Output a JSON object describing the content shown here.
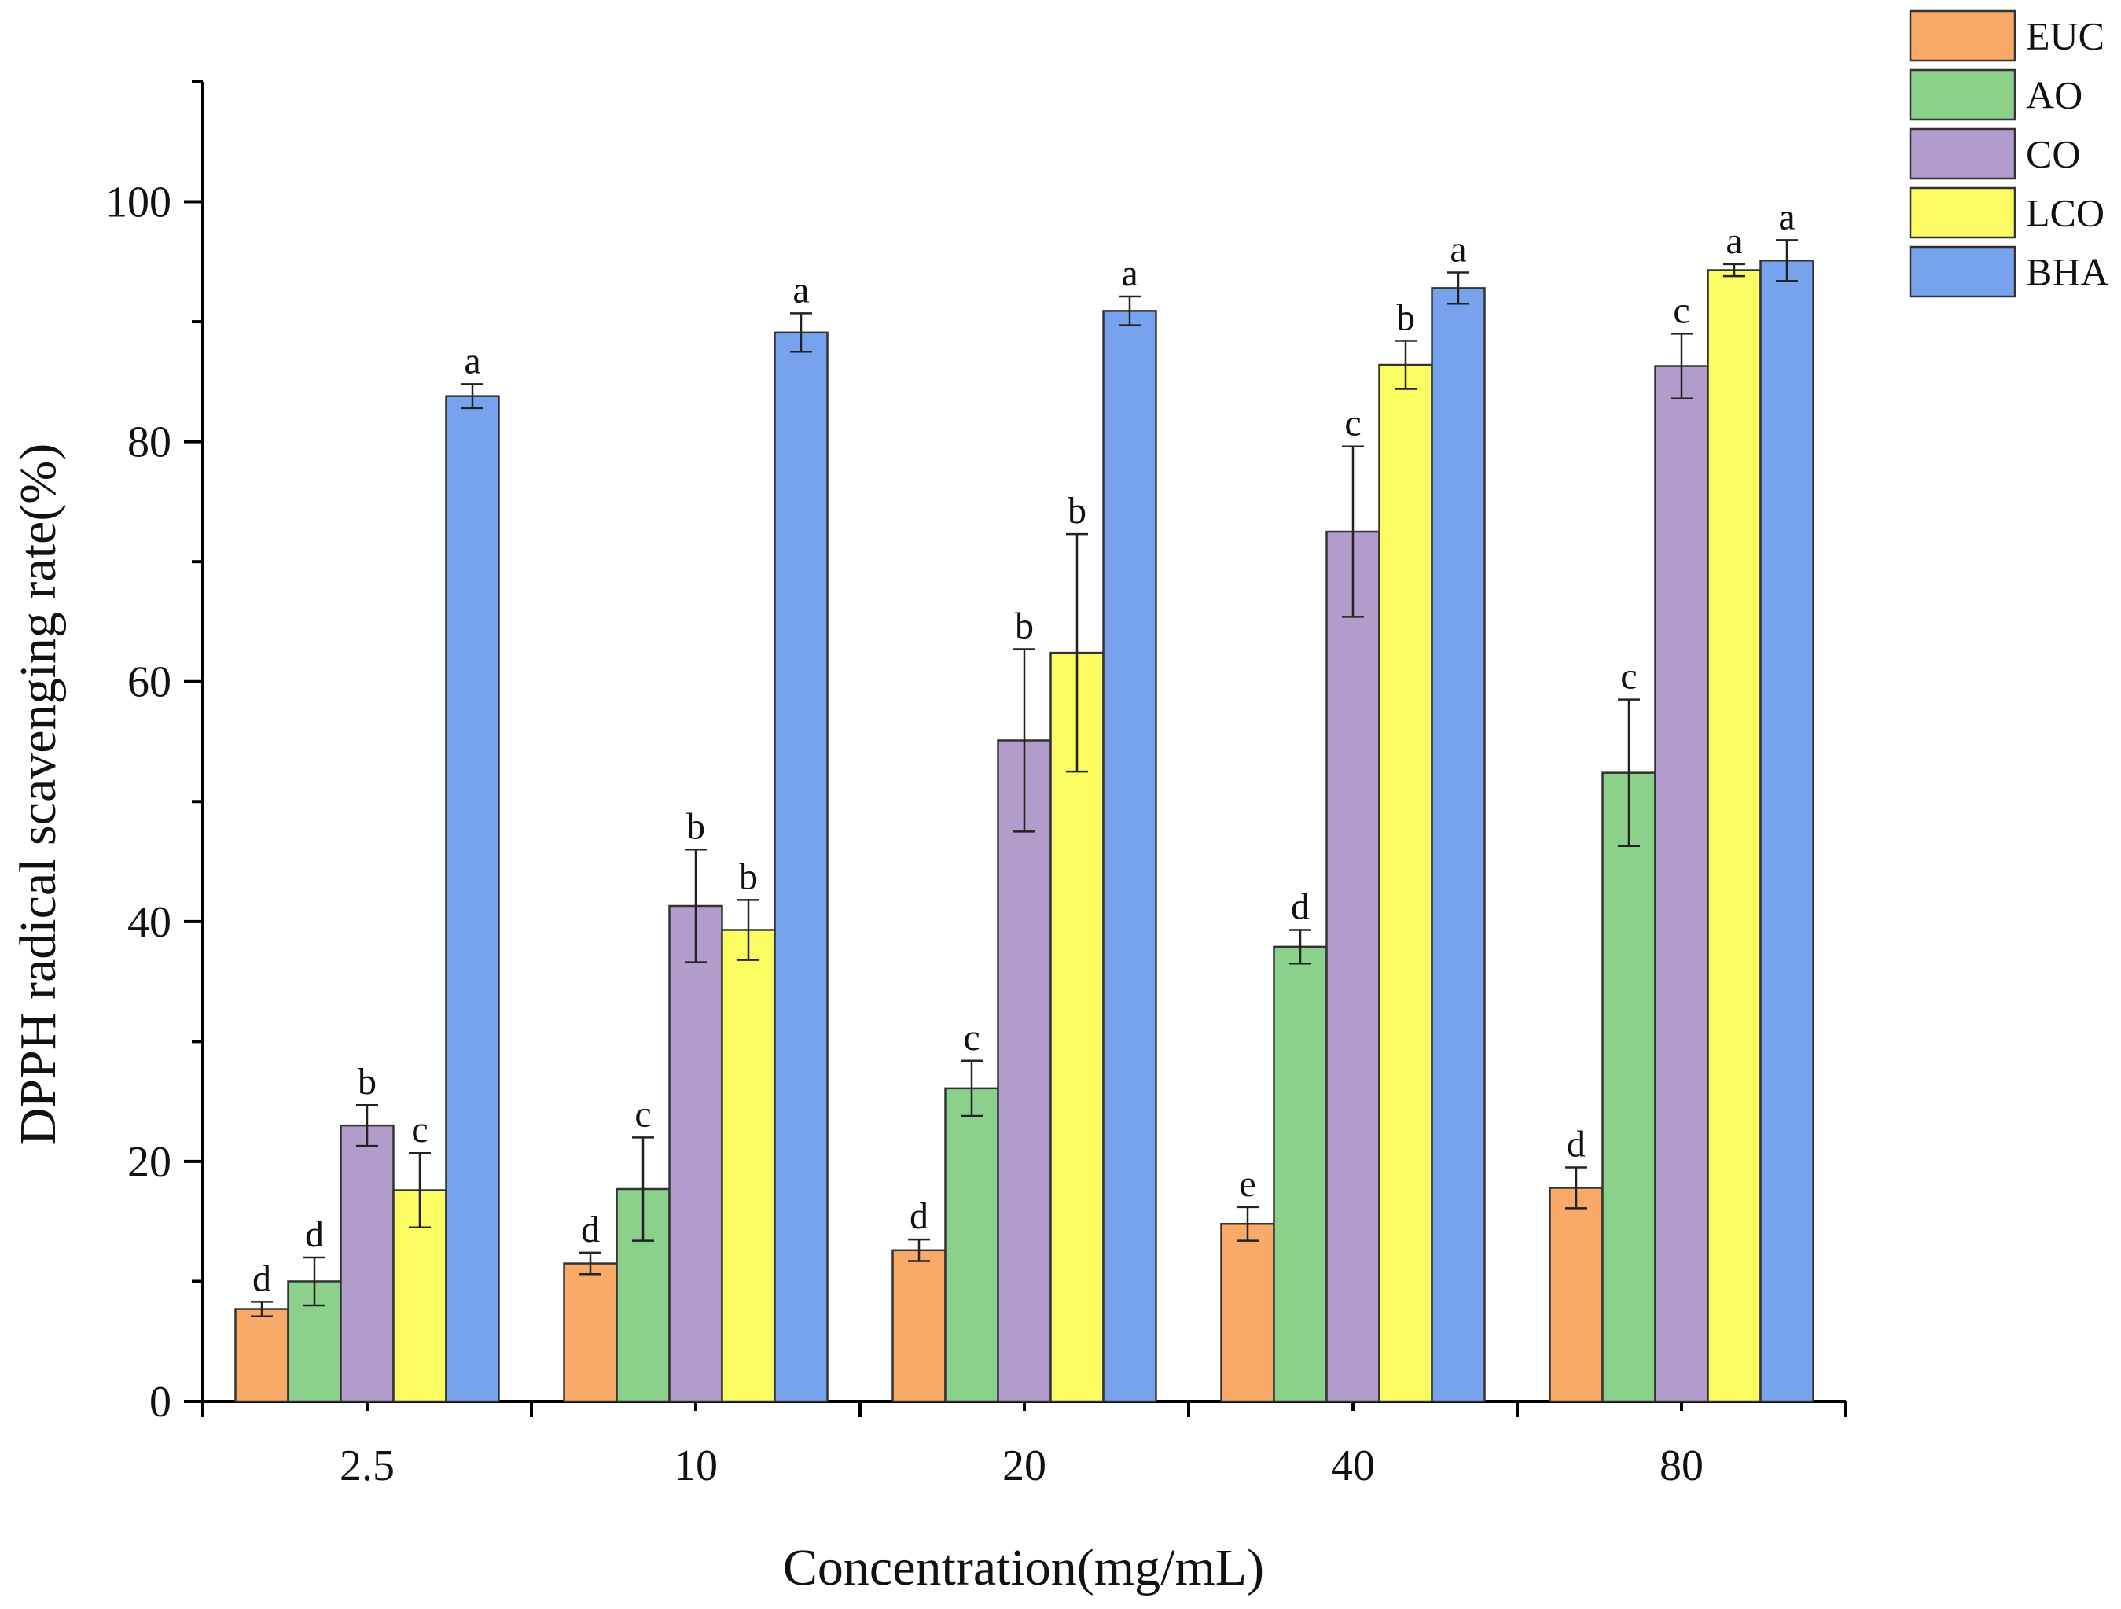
{
  "chart_data": {
    "type": "bar",
    "xlabel": "Concentration(mg/mL)",
    "ylabel": "DPPH radical scavenging rate(%)",
    "ylim": [
      0,
      110
    ],
    "yticks": [
      0,
      20,
      40,
      60,
      80,
      100
    ],
    "categories": [
      "2.5",
      "10",
      "20",
      "40",
      "80"
    ],
    "legend_position": "top-right",
    "series": [
      {
        "name": "EUC",
        "color": "#F9A968",
        "values": [
          7.7,
          11.5,
          12.6,
          14.8,
          17.8
        ],
        "errors": [
          0.6,
          0.9,
          0.9,
          1.4,
          1.7
        ],
        "letters": [
          "d",
          "d",
          "d",
          "e",
          "d"
        ]
      },
      {
        "name": "AO",
        "color": "#8BD08B",
        "values": [
          10.0,
          17.7,
          26.1,
          37.9,
          52.4
        ],
        "errors": [
          2.0,
          4.3,
          2.3,
          1.4,
          6.1
        ],
        "letters": [
          "d",
          "c",
          "c",
          "d",
          "c"
        ]
      },
      {
        "name": "CO",
        "color": "#B29CCB",
        "values": [
          23.0,
          41.3,
          55.1,
          72.5,
          86.3
        ],
        "errors": [
          1.7,
          4.7,
          7.6,
          7.1,
          2.7
        ],
        "letters": [
          "b",
          "b",
          "b",
          "c",
          "c"
        ]
      },
      {
        "name": "LCO",
        "color": "#FBFB62",
        "values": [
          17.6,
          39.3,
          62.4,
          86.4,
          94.3
        ],
        "errors": [
          3.1,
          2.5,
          9.9,
          2.0,
          0.5
        ],
        "letters": [
          "c",
          "b",
          "b",
          "b",
          "a"
        ]
      },
      {
        "name": "BHA",
        "color": "#77A3EE",
        "values": [
          83.8,
          89.1,
          90.9,
          92.8,
          95.1
        ],
        "errors": [
          1.0,
          1.6,
          1.2,
          1.3,
          1.7
        ],
        "letters": [
          "a",
          "a",
          "a",
          "a",
          "a"
        ]
      }
    ]
  }
}
